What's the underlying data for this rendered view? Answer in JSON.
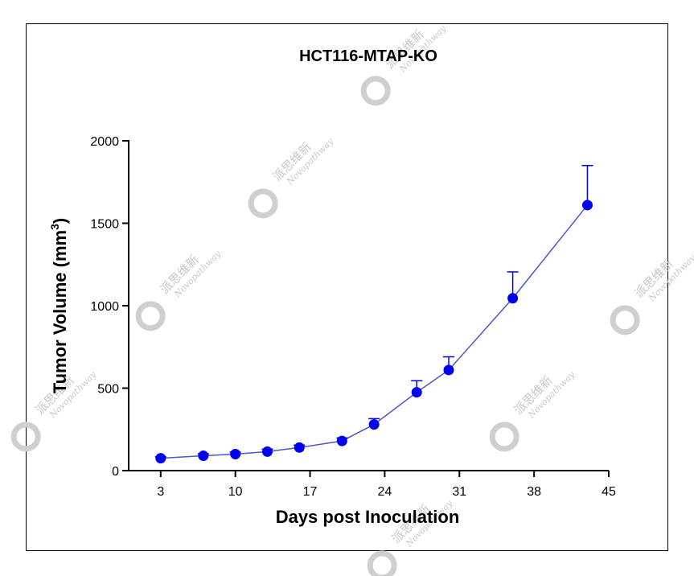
{
  "chart_data": {
    "type": "line",
    "title": "HCT116-MTAP-KO",
    "xlabel": "Days post Inoculation",
    "ylabel_main": "Tumor Volume (mm",
    "ylabel_sup": "3",
    "ylabel_close": ")",
    "xlim": [
      0,
      45
    ],
    "ylim": [
      0,
      2000
    ],
    "x_ticks": [
      3,
      10,
      17,
      24,
      31,
      38,
      45
    ],
    "y_ticks": [
      0,
      500,
      1000,
      1500,
      2000
    ],
    "grid": false,
    "series": [
      {
        "x": [
          3,
          7,
          10,
          13,
          16,
          20,
          23,
          27,
          30,
          36,
          43
        ],
        "y": [
          75,
          90,
          100,
          115,
          140,
          180,
          280,
          475,
          610,
          1045,
          1610
        ],
        "error_upper": [
          10,
          12,
          12,
          15,
          15,
          18,
          35,
          70,
          80,
          160,
          240
        ],
        "color": "#0000ee",
        "line_color": "#4c56c8"
      }
    ]
  },
  "watermark": {
    "chinese": "派思维新",
    "latin": "Novopathway",
    "logo": "novopathway-logo-icon"
  }
}
